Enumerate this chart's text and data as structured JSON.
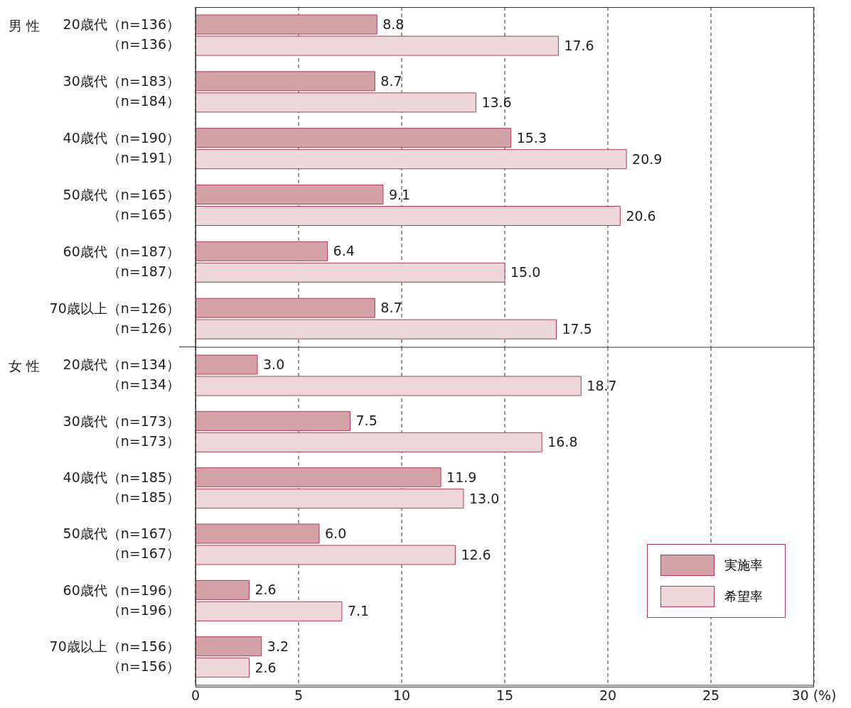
{
  "chart_data": [
    {
      "type": "bar",
      "orientation": "horizontal",
      "ylabel": "男 性",
      "categories": [
        "20歳代（n=136）（n=136）",
        "30歳代（n=183）（n=184）",
        "40歳代（n=190）（n=191）",
        "50歳代（n=165）（n=165）",
        "60歳代（n=187）（n=187）",
        "70歳以上（n=126）（n=126）"
      ],
      "series": [
        {
          "color": "#d4a1a7",
          "values": [
            8.8,
            8.7,
            15.3,
            9.1,
            6.4,
            8.7
          ],
          "value_labels": [
            "8.8",
            "8.7",
            "15.3",
            "9.1",
            "6.4",
            "8.7"
          ]
        },
        {
          "color": "#edd7d8",
          "values": [
            17.6,
            13.6,
            20.9,
            20.6,
            15.0,
            17.5
          ],
          "value_labels": [
            "17.6",
            "13.6",
            "20.9",
            "20.6",
            "15.0",
            "17.5"
          ]
        }
      ],
      "xlim": [
        0,
        30
      ],
      "xticks": [
        0,
        5,
        10,
        15,
        20,
        25,
        30
      ],
      "grid": "x",
      "tick_labels": "y",
      "legend": false
    },
    {
      "type": "bar",
      "orientation": "horizontal",
      "ylabel": "女 性",
      "categories": [
        "20歳代（n=134）（n=134）",
        "30歳代（n=173）（n=173）",
        "40歳代（n=185）（n=185）",
        "50歳代（n=167）（n=167）",
        "60歳代（n=196）（n=196）",
        "70歳以上（n=156）（n=156）"
      ],
      "series": [
        {
          "name": "実施率",
          "color": "#d4a1a7",
          "values": [
            3.0,
            7.5,
            11.9,
            6.0,
            2.6,
            3.2
          ],
          "value_labels": [
            "3.0",
            "7.5",
            "11.9",
            "6.0",
            "2.6",
            "3.2"
          ]
        },
        {
          "name": "希望率",
          "color": "#edd7d8",
          "values": [
            18.7,
            16.8,
            13.0,
            12.6,
            7.1,
            2.6
          ],
          "value_labels": [
            "18.7",
            "16.8",
            "13.0",
            "12.6",
            "7.1",
            "2.6"
          ]
        }
      ],
      "xlim": [
        0,
        30
      ],
      "xticks": [
        0,
        5,
        10,
        15,
        20,
        25,
        {
          "value": 30,
          "label": "30 (%)"
        }
      ],
      "grid": "x",
      "legend": "bottom right"
    }
  ]
}
